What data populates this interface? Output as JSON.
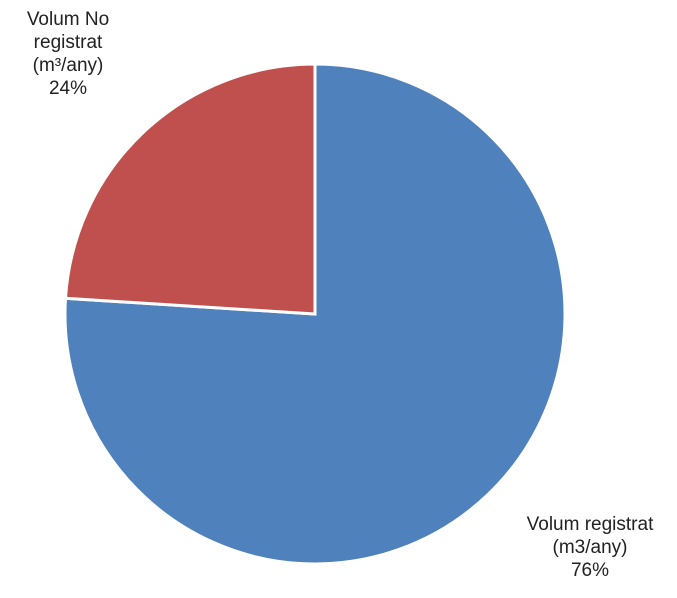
{
  "chart_data": {
    "type": "pie",
    "title": "",
    "slices": [
      {
        "label_lines": [
          "Volum registrat",
          "(m3/any)"
        ],
        "value_label": "76%",
        "percent": 76,
        "color": "#4F81BD"
      },
      {
        "label_lines": [
          "Volum No",
          "registrat",
          "(m³/any)"
        ],
        "value_label": "24%",
        "percent": 24,
        "color": "#C0504D"
      }
    ],
    "legend": "none"
  }
}
